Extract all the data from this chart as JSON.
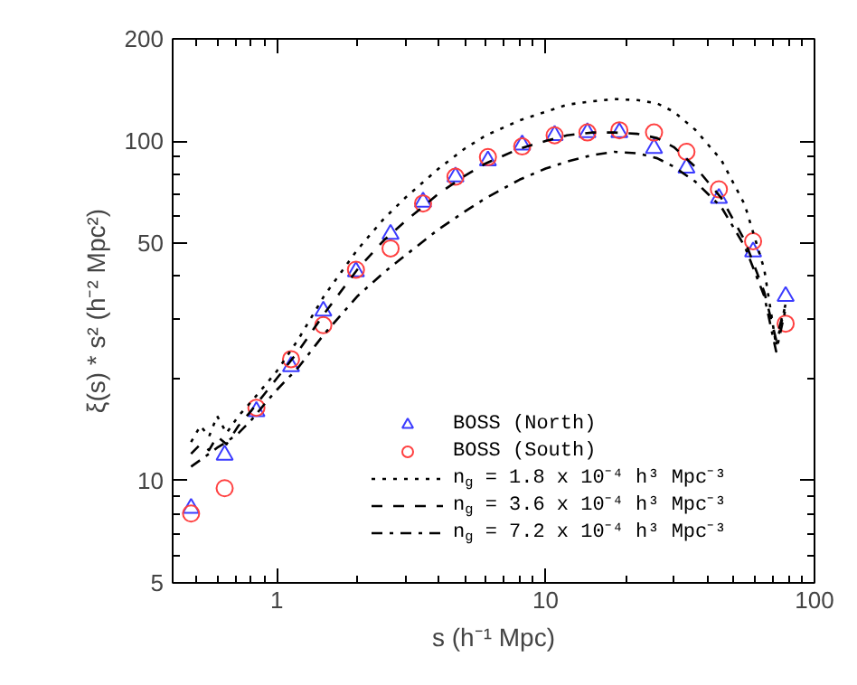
{
  "chart_data": {
    "type": "scatter",
    "xlabel": "s (h⁻¹ Mpc)",
    "ylabel": "ξ(s) * s² (h⁻² Mpc²)",
    "log": "xy",
    "xlim": [
      0.41,
      100
    ],
    "ylim": [
      5,
      200
    ],
    "xticks": [
      1,
      10,
      100
    ],
    "yticks": [
      5,
      10,
      50,
      100,
      200
    ],
    "grid": false,
    "legend": "bottom right",
    "series": [
      {
        "name": "BOSS (North)",
        "marker": "triangle",
        "color": "#3b3bff",
        "x": [
          0.48,
          0.64,
          0.84,
          1.13,
          1.49,
          1.97,
          2.65,
          3.5,
          4.62,
          6.1,
          8.18,
          10.8,
          14.3,
          18.8,
          25.3,
          33.4,
          44.1,
          59.1,
          78.1
        ],
        "values": [
          8.3,
          11.9,
          16.0,
          21.7,
          31.6,
          41.3,
          53.2,
          66.2,
          78.5,
          87.5,
          97.5,
          104,
          106,
          106,
          95.3,
          83.4,
          67.9,
          47.2,
          34.9
        ]
      },
      {
        "name": "BOSS (South)",
        "marker": "circle",
        "color": "#ff4040",
        "x": [
          0.48,
          0.64,
          0.84,
          1.13,
          1.49,
          1.97,
          2.65,
          3.5,
          4.62,
          6.1,
          8.18,
          10.8,
          14.3,
          18.8,
          25.3,
          33.4,
          44.1,
          59.1,
          78.1
        ],
        "values": [
          8.0,
          9.5,
          16.4,
          22.8,
          28.7,
          41.8,
          48.3,
          65.5,
          78.5,
          89.7,
          96.4,
          104,
          106,
          107.6,
          106,
          93.0,
          72.1,
          50.7,
          29.0
        ]
      },
      {
        "name": "n$_{g}$ = 1.8 x 10⁻⁴ h³ Mpc⁻³",
        "type": "line",
        "line_style": "dotted",
        "color": "#000000",
        "x": [
          0.48,
          0.52,
          0.56,
          0.6,
          0.65,
          0.72,
          0.8,
          0.9,
          1.0,
          1.2,
          1.5,
          2,
          2.5,
          3,
          4,
          5,
          6,
          8,
          10,
          12,
          15,
          18,
          22,
          26,
          30,
          36,
          45,
          55,
          65,
          72,
          78
        ],
        "values": [
          13,
          14.5,
          13.5,
          15.5,
          13.8,
          15.5,
          17,
          19,
          21,
          26,
          35,
          48,
          59,
          68,
          83,
          95,
          104,
          115,
          122,
          128,
          131,
          133,
          132,
          129,
          122,
          108,
          88,
          65,
          42,
          25,
          33
        ]
      },
      {
        "name": "n$_{g}$ = 3.6 x 10⁻⁴ h³ Mpc⁻³",
        "type": "line",
        "line_style": "dashed",
        "color": "#000000",
        "x": [
          0.48,
          0.52,
          0.56,
          0.6,
          0.65,
          0.72,
          0.8,
          0.9,
          1.0,
          1.2,
          1.5,
          2,
          2.5,
          3,
          4,
          5,
          6,
          8,
          10,
          12,
          15,
          18,
          22,
          26,
          30,
          36,
          45,
          55,
          65,
          72,
          78
        ],
        "values": [
          12,
          12.8,
          12.3,
          13.5,
          12.8,
          14.5,
          16,
          18,
          20,
          24,
          31,
          42,
          51,
          58,
          70,
          79,
          86,
          95,
          100,
          104,
          106,
          106,
          105,
          102,
          96,
          84,
          68,
          51,
          36,
          26,
          33
        ]
      },
      {
        "name": "n$_{g}$ = 7.2 x 10⁻⁴ h³ Mpc⁻³",
        "type": "line",
        "line_style": "dashdot",
        "color": "#000000",
        "x": [
          0.48,
          0.52,
          0.56,
          0.6,
          0.65,
          0.72,
          0.8,
          0.9,
          1.0,
          1.2,
          1.5,
          2,
          2.5,
          3,
          4,
          5,
          6,
          8,
          10,
          12,
          15,
          18,
          22,
          26,
          30,
          36,
          45,
          55,
          65,
          72,
          78
        ],
        "values": [
          11,
          11.5,
          12,
          12.5,
          13,
          13.8,
          15,
          16.8,
          18.5,
          21.5,
          27,
          35,
          41,
          46,
          55,
          62,
          68,
          77,
          83,
          87,
          91,
          93,
          92,
          89,
          84,
          76,
          64,
          49,
          35,
          24,
          32
        ]
      }
    ]
  }
}
